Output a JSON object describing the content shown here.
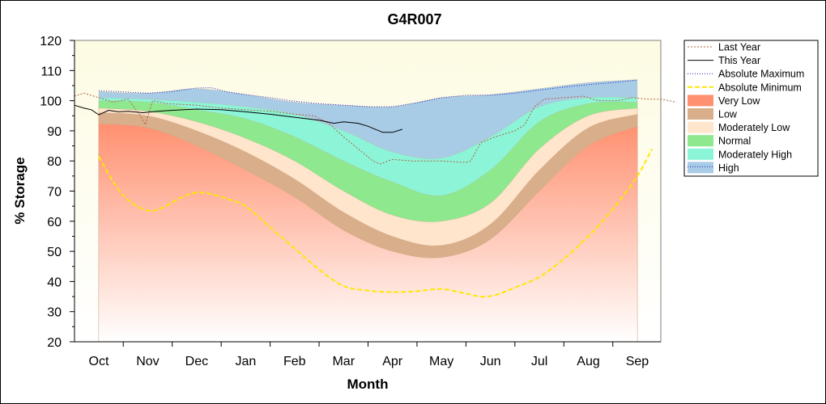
{
  "chart_data": {
    "type": "area",
    "title": "G4R007",
    "xlabel": "Month",
    "ylabel": "% Storage",
    "ylim": [
      20,
      120
    ],
    "yticks": [
      20,
      30,
      40,
      50,
      60,
      70,
      80,
      90,
      100,
      110,
      120
    ],
    "months": [
      "Oct",
      "Nov",
      "Dec",
      "Jan",
      "Feb",
      "Mar",
      "Apr",
      "May",
      "Jun",
      "Jul",
      "Aug",
      "Sep"
    ],
    "legend_position": "right",
    "bands": [
      {
        "name": "Very Low",
        "color": "#ff9070",
        "upper": [
          92.3,
          91,
          85,
          77,
          68,
          57,
          50,
          48,
          54,
          70,
          85,
          91.5
        ]
      },
      {
        "name": "Low",
        "color": "#d9ae8a",
        "upper": [
          96,
          95,
          90,
          83,
          74,
          63,
          55,
          52,
          59,
          77,
          91,
          95.5
        ]
      },
      {
        "name": "Moderately Low",
        "color": "#ffe5cc",
        "upper": [
          97.5,
          96.5,
          93,
          87.5,
          80,
          70,
          62,
          60,
          66,
          84,
          95,
          97.5
        ]
      },
      {
        "name": "Normal",
        "color": "#8ee88e",
        "upper": [
          100,
          99.5,
          97,
          94,
          88,
          80,
          73,
          68.5,
          77,
          93,
          99,
          99.5
        ]
      },
      {
        "name": "Moderately High",
        "color": "#8cf5d8",
        "upper": [
          101,
          100.5,
          99.5,
          98,
          95.5,
          90,
          83,
          81,
          88,
          98,
          101,
          101
        ]
      },
      {
        "name": "High",
        "color": "#a8cce6",
        "upper": [
          103,
          102.5,
          104,
          102,
          99.5,
          98.5,
          98,
          101,
          102,
          104,
          106,
          107
        ]
      }
    ],
    "series": [
      {
        "name": "Last Year",
        "color": "#b06040",
        "dash": "2,2",
        "points": [
          [
            -0.5,
            101.5
          ],
          [
            -0.3,
            102.5
          ],
          [
            0,
            101
          ],
          [
            0.3,
            99.5
          ],
          [
            0.6,
            100.5
          ],
          [
            0.85,
            95
          ],
          [
            0.95,
            92
          ],
          [
            1.1,
            100
          ],
          [
            1.4,
            99
          ],
          [
            2,
            98.5
          ],
          [
            2.5,
            97.5
          ],
          [
            3,
            97
          ],
          [
            3.5,
            96.5
          ],
          [
            4,
            95.5
          ],
          [
            4.4,
            95
          ],
          [
            4.7,
            92.5
          ],
          [
            5,
            88
          ],
          [
            5.3,
            84
          ],
          [
            5.6,
            80
          ],
          [
            5.75,
            79
          ],
          [
            6,
            80.5
          ],
          [
            6.4,
            80
          ],
          [
            7,
            80
          ],
          [
            7.5,
            79.5
          ],
          [
            7.6,
            80
          ],
          [
            7.8,
            86
          ],
          [
            8.1,
            88
          ],
          [
            8.3,
            89
          ],
          [
            8.5,
            90
          ],
          [
            8.7,
            92
          ],
          [
            8.9,
            98
          ],
          [
            9.1,
            100.5
          ],
          [
            9.5,
            101
          ],
          [
            9.9,
            101.5
          ],
          [
            10.2,
            100
          ],
          [
            10.6,
            100
          ],
          [
            10.9,
            101
          ],
          [
            11.2,
            100.5
          ],
          [
            11.5,
            100.5
          ],
          [
            11.8,
            99.5
          ]
        ]
      },
      {
        "name": "This Year",
        "color": "#000000",
        "dash": "",
        "points": [
          [
            -0.5,
            98.5
          ],
          [
            -0.3,
            97.5
          ],
          [
            -0.15,
            97
          ],
          [
            0,
            95.3
          ],
          [
            0.2,
            96.8
          ],
          [
            0.4,
            96.3
          ],
          [
            0.6,
            96.5
          ],
          [
            0.9,
            96
          ],
          [
            1.2,
            96.5
          ],
          [
            1.5,
            96.8
          ],
          [
            2,
            97.2
          ],
          [
            2.5,
            97
          ],
          [
            3,
            96.3
          ],
          [
            3.5,
            95.5
          ],
          [
            4,
            94.5
          ],
          [
            4.5,
            93.5
          ],
          [
            4.8,
            92.5
          ],
          [
            5,
            93
          ],
          [
            5.3,
            92.5
          ],
          [
            5.5,
            91.5
          ],
          [
            5.8,
            89.5
          ],
          [
            6,
            89.5
          ],
          [
            6.2,
            90.5
          ]
        ]
      },
      {
        "name": "Absolute Maximum",
        "color": "#2020c0",
        "dash": "1,2",
        "points": [
          [
            0,
            103.3
          ],
          [
            0.4,
            103
          ],
          [
            1,
            102.5
          ],
          [
            1.5,
            103
          ],
          [
            2,
            104.2
          ],
          [
            2.3,
            104.3
          ],
          [
            2.6,
            103
          ],
          [
            3,
            102
          ],
          [
            3.5,
            101
          ],
          [
            4,
            99.8
          ],
          [
            4.5,
            99
          ],
          [
            5,
            98.5
          ],
          [
            5.5,
            98
          ],
          [
            6,
            98
          ],
          [
            6.5,
            99.3
          ],
          [
            7,
            101
          ],
          [
            7.5,
            101.8
          ],
          [
            8,
            101.8
          ],
          [
            8.5,
            102.5
          ],
          [
            9,
            103.5
          ],
          [
            9.5,
            104.5
          ],
          [
            10,
            105.3
          ],
          [
            10.5,
            106
          ],
          [
            11,
            106.8
          ]
        ]
      },
      {
        "name": "Absolute Minimum",
        "color": "#ffe800",
        "dash": "6,3",
        "points": [
          [
            0,
            81.5
          ],
          [
            0.3,
            73
          ],
          [
            0.6,
            67
          ],
          [
            1,
            63.5
          ],
          [
            1.3,
            64.5
          ],
          [
            1.7,
            68
          ],
          [
            2,
            69.5
          ],
          [
            2.3,
            69
          ],
          [
            2.7,
            67
          ],
          [
            3,
            65
          ],
          [
            3.5,
            58
          ],
          [
            4,
            51
          ],
          [
            4.5,
            44
          ],
          [
            5,
            38.5
          ],
          [
            5.5,
            37
          ],
          [
            6,
            36.5
          ],
          [
            6.5,
            36.8
          ],
          [
            7,
            37.5
          ],
          [
            7.5,
            36
          ],
          [
            7.8,
            35
          ],
          [
            8.1,
            35.5
          ],
          [
            8.5,
            38
          ],
          [
            9,
            41.5
          ],
          [
            9.5,
            47.5
          ],
          [
            10,
            55
          ],
          [
            10.5,
            64
          ],
          [
            11,
            75
          ],
          [
            11.3,
            84
          ]
        ]
      }
    ]
  }
}
